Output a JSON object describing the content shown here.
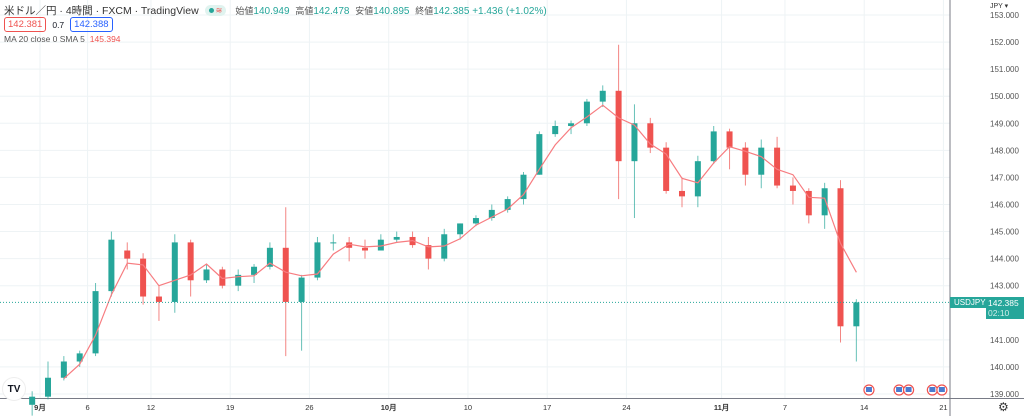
{
  "header": {
    "title": "米ドル／円 · 4時間 · FXCM · TradingView",
    "ohlc": [
      {
        "key": "始値",
        "value": "140.949"
      },
      {
        "key": "高値",
        "value": "142.478"
      },
      {
        "key": "安値",
        "value": "140.895"
      },
      {
        "key": "終値",
        "value": "142.385"
      }
    ],
    "change": "+1.436 (+1.02%)",
    "bid": "142.381",
    "spread": "0.7",
    "ask": "142.388",
    "indicator": "MA 20 close 0 SMA 5",
    "indicator_value": "145.394"
  },
  "axis": {
    "currency": "JPY ▾",
    "symbol": "USDJPY",
    "last_price": "142.385",
    "countdown": "02:10"
  },
  "colors": {
    "up": "#26a69a",
    "down": "#ef5350",
    "ma": "#f77c80",
    "grid": "#eef3f5",
    "axis_line": "#787b86"
  },
  "chart_data": {
    "type": "candlestick",
    "title": "USDJPY 4h",
    "ylim": [
      138.9,
      153.5
    ],
    "yticks": [
      "153.000",
      "152.000",
      "151.000",
      "150.000",
      "149.000",
      "148.000",
      "147.000",
      "146.000",
      "145.000",
      "144.000",
      "143.000",
      "141.000",
      "140.000",
      "139.000"
    ],
    "xticks": [
      {
        "label": "9月",
        "day": 0
      },
      {
        "label": "6",
        "day": 3
      },
      {
        "label": "12",
        "day": 7
      },
      {
        "label": "19",
        "day": 12
      },
      {
        "label": "26",
        "day": 17
      },
      {
        "label": "10月",
        "day": 22
      },
      {
        "label": "10",
        "day": 27
      },
      {
        "label": "17",
        "day": 32
      },
      {
        "label": "24",
        "day": 37
      },
      {
        "label": "11月",
        "day": 43
      },
      {
        "label": "7",
        "day": 47
      },
      {
        "label": "14",
        "day": 52
      },
      {
        "label": "21",
        "day": 57
      }
    ],
    "candles": [
      {
        "d": "8/31",
        "o": 138.6,
        "h": 139.1,
        "l": 138.2,
        "c": 138.9
      },
      {
        "d": "9/1",
        "o": 138.9,
        "h": 140.2,
        "l": 138.8,
        "c": 139.6
      },
      {
        "d": "9/2",
        "o": 139.6,
        "h": 140.4,
        "l": 139.5,
        "c": 140.2
      },
      {
        "d": "9/5",
        "o": 140.2,
        "h": 140.6,
        "l": 140.0,
        "c": 140.5
      },
      {
        "d": "9/6",
        "o": 140.5,
        "h": 143.1,
        "l": 140.4,
        "c": 142.8
      },
      {
        "d": "9/7",
        "o": 142.8,
        "h": 145.0,
        "l": 142.6,
        "c": 144.7
      },
      {
        "d": "9/8",
        "o": 144.3,
        "h": 144.6,
        "l": 143.6,
        "c": 144.0
      },
      {
        "d": "9/9",
        "o": 144.0,
        "h": 144.2,
        "l": 142.3,
        "c": 142.6
      },
      {
        "d": "9/12",
        "o": 142.6,
        "h": 143.0,
        "l": 141.7,
        "c": 142.4
      },
      {
        "d": "9/13",
        "o": 142.4,
        "h": 144.9,
        "l": 142.0,
        "c": 144.6
      },
      {
        "d": "9/14",
        "o": 144.6,
        "h": 144.7,
        "l": 142.6,
        "c": 143.2
      },
      {
        "d": "9/15",
        "o": 143.2,
        "h": 143.8,
        "l": 143.1,
        "c": 143.6
      },
      {
        "d": "9/16",
        "o": 143.6,
        "h": 143.7,
        "l": 142.9,
        "c": 143.0
      },
      {
        "d": "9/19",
        "o": 143.0,
        "h": 143.6,
        "l": 142.8,
        "c": 143.4
      },
      {
        "d": "9/20",
        "o": 143.4,
        "h": 143.8,
        "l": 143.1,
        "c": 143.7
      },
      {
        "d": "9/21",
        "o": 143.7,
        "h": 144.6,
        "l": 143.6,
        "c": 144.4
      },
      {
        "d": "9/22",
        "o": 144.4,
        "h": 145.9,
        "l": 140.4,
        "c": 142.4
      },
      {
        "d": "9/23",
        "o": 142.4,
        "h": 143.4,
        "l": 140.6,
        "c": 143.3
      },
      {
        "d": "9/26",
        "o": 143.3,
        "h": 144.8,
        "l": 143.2,
        "c": 144.6
      },
      {
        "d": "9/27",
        "o": 144.6,
        "h": 144.9,
        "l": 144.3,
        "c": 144.6
      },
      {
        "d": "9/28",
        "o": 144.6,
        "h": 144.8,
        "l": 143.9,
        "c": 144.4
      },
      {
        "d": "9/29",
        "o": 144.4,
        "h": 144.7,
        "l": 144.0,
        "c": 144.3
      },
      {
        "d": "9/30",
        "o": 144.3,
        "h": 144.9,
        "l": 144.3,
        "c": 144.7
      },
      {
        "d": "10/3",
        "o": 144.7,
        "h": 145.0,
        "l": 144.6,
        "c": 144.8
      },
      {
        "d": "10/4",
        "o": 144.8,
        "h": 145.0,
        "l": 144.4,
        "c": 144.5
      },
      {
        "d": "10/5",
        "o": 144.5,
        "h": 144.8,
        "l": 143.6,
        "c": 144.0
      },
      {
        "d": "10/6",
        "o": 144.0,
        "h": 145.1,
        "l": 143.9,
        "c": 144.9
      },
      {
        "d": "10/7",
        "o": 144.9,
        "h": 145.3,
        "l": 144.7,
        "c": 145.3
      },
      {
        "d": "10/10",
        "o": 145.3,
        "h": 145.6,
        "l": 145.2,
        "c": 145.5
      },
      {
        "d": "10/11",
        "o": 145.5,
        "h": 146.0,
        "l": 145.4,
        "c": 145.8
      },
      {
        "d": "10/12",
        "o": 145.8,
        "h": 146.3,
        "l": 145.7,
        "c": 146.2
      },
      {
        "d": "10/13",
        "o": 146.2,
        "h": 147.2,
        "l": 146.0,
        "c": 147.1
      },
      {
        "d": "10/14",
        "o": 147.1,
        "h": 148.7,
        "l": 147.1,
        "c": 148.6
      },
      {
        "d": "10/17",
        "o": 148.6,
        "h": 149.1,
        "l": 148.5,
        "c": 148.9
      },
      {
        "d": "10/18",
        "o": 148.9,
        "h": 149.1,
        "l": 148.6,
        "c": 149.0
      },
      {
        "d": "10/19",
        "o": 149.0,
        "h": 149.9,
        "l": 148.9,
        "c": 149.8
      },
      {
        "d": "10/20",
        "o": 149.8,
        "h": 150.4,
        "l": 149.6,
        "c": 150.2
      },
      {
        "d": "10/21",
        "o": 150.2,
        "h": 151.9,
        "l": 146.2,
        "c": 147.6
      },
      {
        "d": "10/24",
        "o": 147.6,
        "h": 149.7,
        "l": 145.5,
        "c": 149.0
      },
      {
        "d": "10/25",
        "o": 149.0,
        "h": 149.2,
        "l": 147.9,
        "c": 148.1
      },
      {
        "d": "10/26",
        "o": 148.1,
        "h": 148.3,
        "l": 146.4,
        "c": 146.5
      },
      {
        "d": "10/27",
        "o": 146.5,
        "h": 147.0,
        "l": 145.9,
        "c": 146.3
      },
      {
        "d": "10/28",
        "o": 146.3,
        "h": 147.8,
        "l": 145.9,
        "c": 147.6
      },
      {
        "d": "10/31",
        "o": 147.6,
        "h": 148.9,
        "l": 147.5,
        "c": 148.7
      },
      {
        "d": "11/1",
        "o": 148.7,
        "h": 148.8,
        "l": 147.3,
        "c": 148.1
      },
      {
        "d": "11/2",
        "o": 148.1,
        "h": 148.3,
        "l": 146.7,
        "c": 147.1
      },
      {
        "d": "11/3",
        "o": 147.1,
        "h": 148.4,
        "l": 146.6,
        "c": 148.1
      },
      {
        "d": "11/4",
        "o": 148.1,
        "h": 148.5,
        "l": 146.6,
        "c": 146.7
      },
      {
        "d": "11/7",
        "o": 146.7,
        "h": 147.0,
        "l": 146.0,
        "c": 146.5
      },
      {
        "d": "11/8",
        "o": 146.5,
        "h": 146.6,
        "l": 145.3,
        "c": 145.6
      },
      {
        "d": "11/9",
        "o": 145.6,
        "h": 146.8,
        "l": 145.1,
        "c": 146.6
      },
      {
        "d": "11/10",
        "o": 146.6,
        "h": 146.9,
        "l": 140.9,
        "c": 141.5
      },
      {
        "d": "11/11",
        "o": 141.5,
        "h": 142.5,
        "l": 140.2,
        "c": 142.385
      }
    ],
    "ma_period_days": 3,
    "last_price": 142.385,
    "events": [
      {
        "day": 52.3
      },
      {
        "day": 54.2
      },
      {
        "day": 54.8
      },
      {
        "day": 56.3
      },
      {
        "day": 56.9
      }
    ]
  }
}
